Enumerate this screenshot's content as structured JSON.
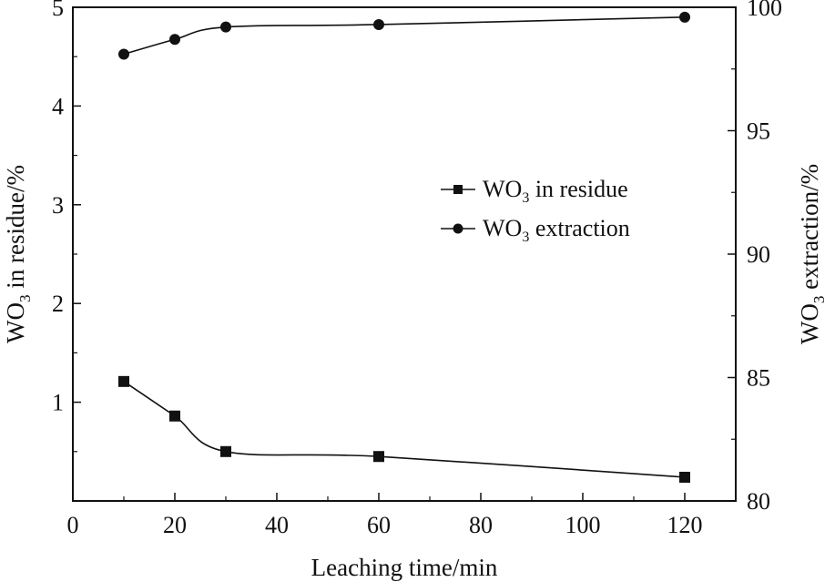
{
  "chart_data": {
    "type": "line",
    "xlabel": "Leaching time/min",
    "ylabel_left": {
      "prefix": "WO",
      "sub": "3",
      "suffix": " in residue/%"
    },
    "ylabel_right": {
      "prefix": "WO",
      "sub": "3",
      "suffix": " extraction/%"
    },
    "xlim": [
      0,
      130
    ],
    "ylim_left": [
      0.0,
      5.0
    ],
    "ylim_right": [
      80,
      100
    ],
    "xticks": [
      0,
      20,
      40,
      60,
      80,
      100,
      120
    ],
    "yticks_left": [
      1,
      2,
      3,
      4,
      5
    ],
    "yticks_right": [
      80,
      85,
      90,
      95,
      100
    ],
    "grid": false,
    "legend_placement": "center-right",
    "series": [
      {
        "name": {
          "prefix": "WO",
          "sub": "3",
          "suffix": " in residue"
        },
        "axis": "left",
        "marker": "square",
        "x": [
          10,
          20,
          30,
          60,
          120
        ],
        "y": [
          1.21,
          0.86,
          0.5,
          0.45,
          0.24
        ]
      },
      {
        "name": {
          "prefix": "WO",
          "sub": "3",
          "suffix": " extraction"
        },
        "axis": "right",
        "marker": "circle",
        "x": [
          10,
          20,
          30,
          60,
          120
        ],
        "y": [
          98.1,
          98.7,
          99.2,
          99.3,
          99.6
        ]
      }
    ]
  }
}
